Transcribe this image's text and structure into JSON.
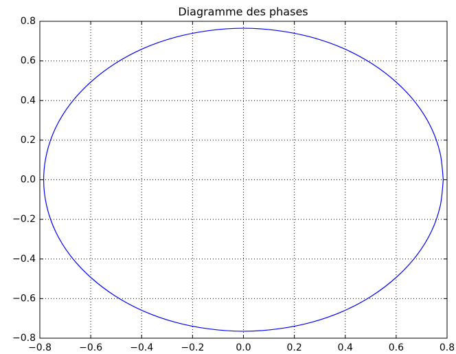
{
  "chart_data": {
    "type": "line",
    "title": "Diagramme des phases",
    "x": [
      0.785,
      0.773,
      0.738,
      0.68,
      0.601,
      0.505,
      0.393,
      0.269,
      0.136,
      0,
      -0.136,
      -0.269,
      -0.393,
      -0.505,
      -0.601,
      -0.68,
      -0.738,
      -0.773,
      -0.785,
      -0.773,
      -0.738,
      -0.68,
      -0.601,
      -0.505,
      -0.393,
      -0.269,
      -0.136,
      0,
      0.136,
      0.269,
      0.393,
      0.505,
      0.601,
      0.68,
      0.738,
      0.773,
      0.785
    ],
    "series": [
      {
        "color": "#0000ff",
        "values": [
          0,
          0.133,
          0.262,
          0.383,
          0.492,
          0.586,
          0.663,
          0.719,
          0.753,
          0.765,
          0.753,
          0.719,
          0.663,
          0.586,
          0.492,
          0.383,
          0.262,
          0.133,
          0,
          -0.133,
          -0.262,
          -0.383,
          -0.492,
          -0.586,
          -0.663,
          -0.719,
          -0.753,
          -0.765,
          -0.753,
          -0.719,
          -0.663,
          -0.586,
          -0.492,
          -0.383,
          -0.262,
          -0.133,
          0
        ]
      }
    ],
    "xlim": [
      -0.8,
      0.8
    ],
    "ylim": [
      -0.8,
      0.8
    ],
    "xticks": [
      {
        "value": -0.8,
        "label": "−0.8"
      },
      {
        "value": -0.6,
        "label": "−0.6"
      },
      {
        "value": -0.4,
        "label": "−0.4"
      },
      {
        "value": -0.2,
        "label": "−0.2"
      },
      {
        "value": 0,
        "label": "0.0"
      },
      0.2,
      0.4,
      0.6,
      0.8
    ],
    "yticks": [
      {
        "value": -0.8,
        "label": "−0.8"
      },
      {
        "value": -0.6,
        "label": "−0.6"
      },
      {
        "value": -0.4,
        "label": "−0.4"
      },
      {
        "value": -0.2,
        "label": "−0.2"
      },
      {
        "value": 0,
        "label": "0.0"
      },
      0.2,
      0.4,
      0.6,
      0.8
    ],
    "grid": true
  }
}
